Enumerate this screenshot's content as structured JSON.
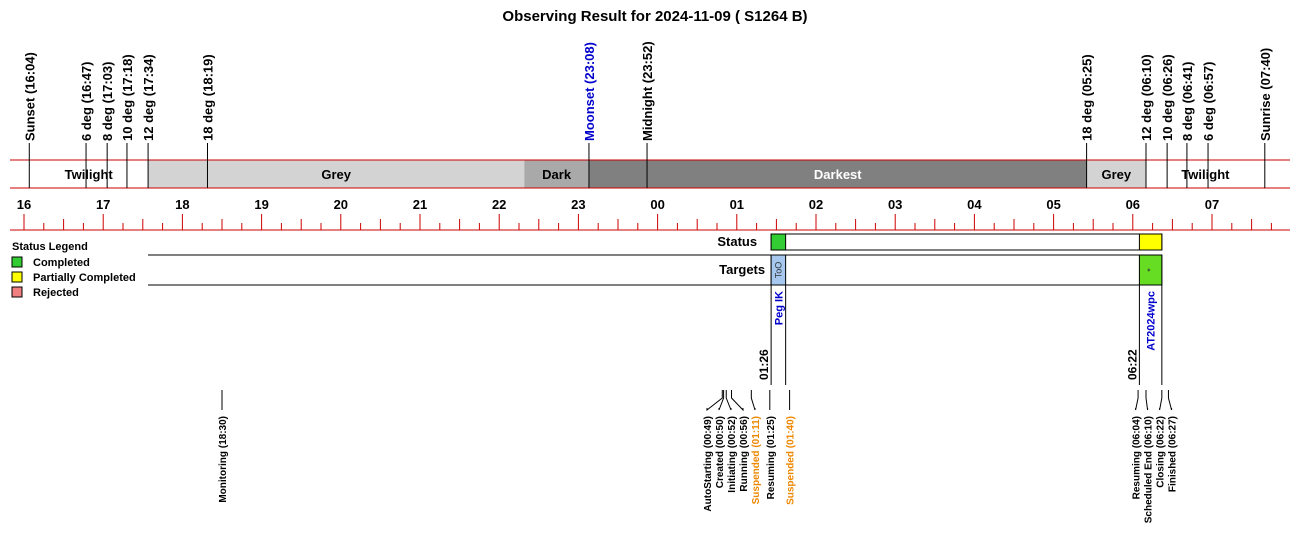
{
  "chart_data": {
    "type": "timeline",
    "title": "Observing Result for 2024-11-09 ( S1264 B)",
    "time_range": [
      "16:00",
      "07:50"
    ],
    "hour_labels": [
      "16",
      "17",
      "18",
      "19",
      "20",
      "21",
      "22",
      "23",
      "00",
      "01",
      "02",
      "03",
      "04",
      "05",
      "06",
      "07"
    ],
    "sky_events": [
      {
        "label": "Sunset (16:04)",
        "time": "16:04",
        "color": "#000000"
      },
      {
        "label": "6 deg (16:47)",
        "time": "16:47",
        "color": "#000000"
      },
      {
        "label": "8 deg (17:03)",
        "time": "17:03",
        "color": "#000000"
      },
      {
        "label": "10 deg (17:18)",
        "time": "17:18",
        "color": "#000000"
      },
      {
        "label": "12 deg (17:34)",
        "time": "17:34",
        "color": "#000000"
      },
      {
        "label": "18 deg (18:19)",
        "time": "18:19",
        "color": "#000000"
      },
      {
        "label": "Moonset (23:08)",
        "time": "23:08",
        "color": "#0000cc"
      },
      {
        "label": "Midnight (23:52)",
        "time": "23:52",
        "color": "#000000"
      },
      {
        "label": "18 deg (05:25)",
        "time": "05:25",
        "color": "#000000"
      },
      {
        "label": "12 deg (06:10)",
        "time": "06:10",
        "color": "#000000"
      },
      {
        "label": "10 deg (06:26)",
        "time": "06:26",
        "color": "#000000"
      },
      {
        "label": "8 deg (06:41)",
        "time": "06:41",
        "color": "#000000"
      },
      {
        "label": "6 deg (06:57)",
        "time": "06:57",
        "color": "#000000"
      },
      {
        "label": "Sunrise (07:40)",
        "time": "07:40",
        "color": "#000000"
      }
    ],
    "sky_bands": [
      {
        "label": "Twilight",
        "start": "16:04",
        "end": "17:34",
        "color": "#ffffff",
        "text_color": "#000000"
      },
      {
        "label": "Grey",
        "start": "17:34",
        "end": "22:19",
        "color": "#d3d3d3",
        "text_color": "#000000"
      },
      {
        "label": "Dark",
        "start": "22:19",
        "end": "23:08",
        "color": "#a9a9a9",
        "text_color": "#000000"
      },
      {
        "label": "Darkest",
        "start": "23:08",
        "end": "05:25",
        "color": "#808080",
        "text_color": "#ffffff"
      },
      {
        "label": "Grey",
        "start": "05:25",
        "end": "06:10",
        "color": "#d3d3d3",
        "text_color": "#000000"
      },
      {
        "label": "Twilight",
        "start": "06:10",
        "end": "07:40",
        "color": "#ffffff",
        "text_color": "#000000"
      }
    ],
    "legend": {
      "title": "Status Legend",
      "items": [
        {
          "label": "Completed",
          "color": "#33cc33"
        },
        {
          "label": "Partially Completed",
          "color": "#ffff00"
        },
        {
          "label": "Rejected",
          "color": "#f08080"
        }
      ]
    },
    "rows": {
      "status": "Status",
      "targets": "Targets"
    },
    "status_blocks": [
      {
        "start": "01:26",
        "end": "01:37",
        "color": "#33cc33"
      },
      {
        "start": "06:05",
        "end": "06:22",
        "color": "#ffff00"
      }
    ],
    "target_blocks": [
      {
        "start": "01:26",
        "end": "01:37",
        "color": "#a6c8ee",
        "label": "ToO",
        "target": "Peg IK",
        "time_label": "01:26"
      },
      {
        "start": "06:05",
        "end": "06:22",
        "color": "#66dd22",
        "label": "*",
        "target": "AT2024wpc",
        "time_label": "06:22"
      }
    ],
    "events": [
      {
        "label": "Monitoring (18:30)",
        "time": "18:30",
        "color": "#000000"
      },
      {
        "label": "AutoStarting (00:49)",
        "time": "00:49",
        "color": "#000000"
      },
      {
        "label": "Created (00:50)",
        "time": "00:50",
        "color": "#000000"
      },
      {
        "label": "Initiating (00:52)",
        "time": "00:52",
        "color": "#000000"
      },
      {
        "label": "Running (00:56)",
        "time": "00:56",
        "color": "#000000"
      },
      {
        "label": "Suspended (01:11)",
        "time": "01:11",
        "color": "#ee8800"
      },
      {
        "label": "Resuming (01:25)",
        "time": "01:25",
        "color": "#000000"
      },
      {
        "label": "Suspended (01:40)",
        "time": "01:40",
        "color": "#ee8800"
      },
      {
        "label": "Resuming (06:04)",
        "time": "06:04",
        "color": "#000000"
      },
      {
        "label": "Scheduled End (06:10)",
        "time": "06:10",
        "color": "#000000"
      },
      {
        "label": "Closing (06:22)",
        "time": "06:22",
        "color": "#000000"
      },
      {
        "label": "Finished (06:27)",
        "time": "06:27",
        "color": "#000000"
      }
    ]
  }
}
